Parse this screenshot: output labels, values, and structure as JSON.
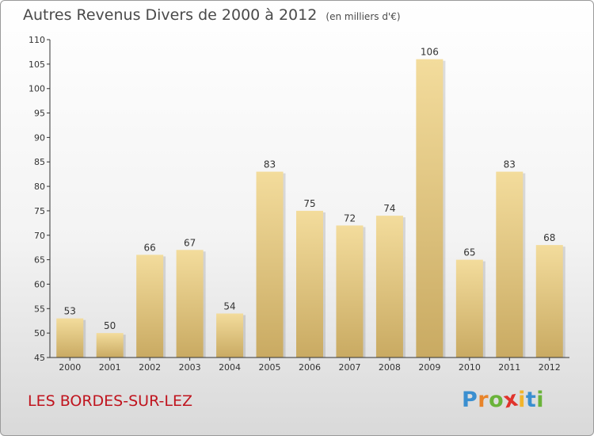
{
  "header": {
    "title": "Autres Revenus Divers de 2000 à 2012",
    "subtitle": "(en milliers d'€)"
  },
  "footer": {
    "place_name": "LES BORDES-SUR-LEZ",
    "brand": {
      "letters": [
        "P",
        "r",
        "o",
        "x",
        "i",
        "t",
        "i"
      ],
      "colors": [
        "#3a8fd0",
        "#e8842a",
        "#6ab33a",
        "#e0332c",
        "#f2b52c",
        "#3a8fd0",
        "#6ab33a"
      ]
    }
  },
  "colors": {
    "bar_top": "#f3dc9c",
    "bar_bottom": "#c9aa62",
    "axis": "#333333",
    "place_name": "#c0141e"
  },
  "chart_data": {
    "type": "bar",
    "categories": [
      "2000",
      "2001",
      "2002",
      "2003",
      "2004",
      "2005",
      "2006",
      "2007",
      "2008",
      "2009",
      "2010",
      "2011",
      "2012"
    ],
    "values": [
      53,
      50,
      66,
      67,
      54,
      83,
      75,
      72,
      74,
      106,
      65,
      83,
      68
    ],
    "data_labels": [
      "53",
      "50",
      "66",
      "67",
      "54",
      "83",
      "75",
      "72",
      "74",
      "106",
      "65",
      "83",
      "68"
    ],
    "yticks": [
      45,
      50,
      55,
      60,
      65,
      70,
      75,
      80,
      85,
      90,
      95,
      100,
      105,
      110
    ],
    "ylim": [
      45,
      110
    ],
    "title": "Autres Revenus Divers de 2000 à 2012",
    "xlabel": "",
    "ylabel": "",
    "grid": false,
    "legend": "none"
  }
}
